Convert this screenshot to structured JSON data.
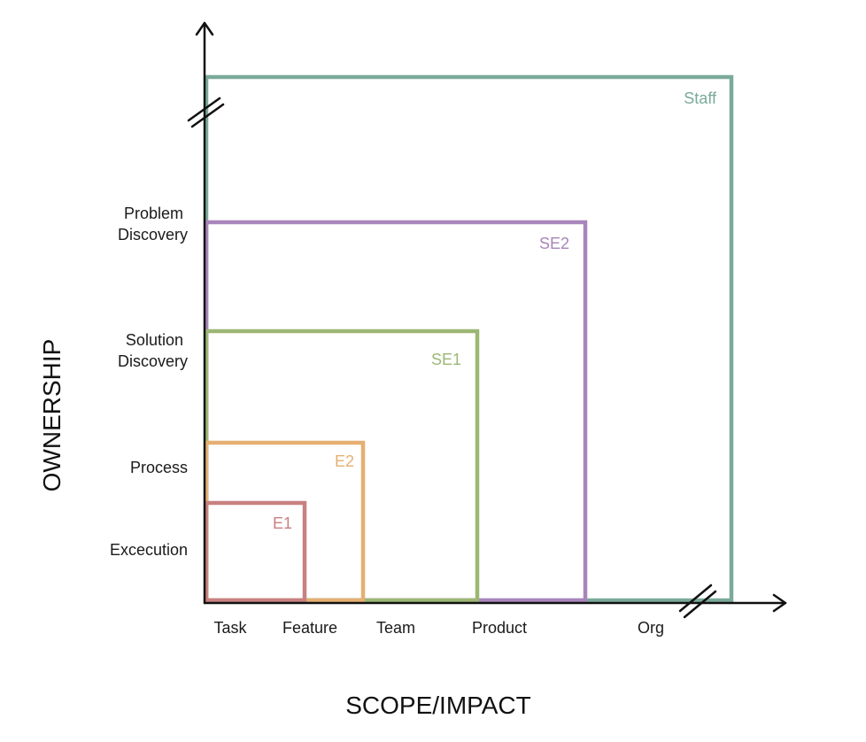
{
  "levels": [
    {
      "label": "E1",
      "color": "#c98080"
    },
    {
      "label": "E2",
      "color": "#e5b071"
    },
    {
      "label": "SE1",
      "color": "#9cb774"
    },
    {
      "label": "SE2",
      "color": "#a885bb"
    },
    {
      "label": "Staff",
      "color": "#7aaa9a"
    }
  ],
  "x_axis": {
    "title": "SCOPE/IMPACT",
    "ticks": [
      "Task",
      "Feature",
      "Team",
      "Product",
      "Org"
    ]
  },
  "y_axis": {
    "title": "OWNERSHIP",
    "ticks": [
      {
        "lines": [
          "Excecution"
        ]
      },
      {
        "lines": [
          "Process"
        ]
      },
      {
        "lines": [
          "Solution",
          "Discovery"
        ]
      },
      {
        "lines": [
          "Problem",
          "Discovery"
        ]
      }
    ]
  },
  "axis_color": "#111111"
}
